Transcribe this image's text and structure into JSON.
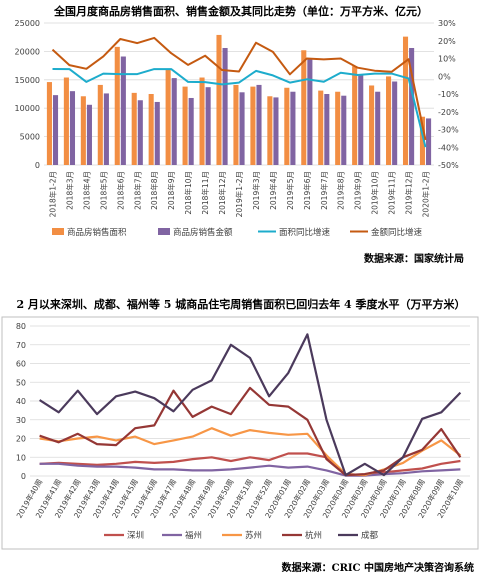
{
  "chart_data": [
    {
      "type": "bar+line",
      "title": "全国月度商品房销售面积、销售金额及其同比走势（单位：万平方米、亿元）",
      "source": "数据来源：国家统计局",
      "categories": [
        "2018年1-2月",
        "2018年3月",
        "2018年4月",
        "2018年5月",
        "2018年6月",
        "2018年7月",
        "2018年8月",
        "2018年9月",
        "2018年10月",
        "2018年11月",
        "2018年12月",
        "2019年1-2月",
        "2019年3月",
        "2019年4月",
        "2019年5月",
        "2019年6月",
        "2019年7月",
        "2019年8月",
        "2019年9月",
        "2019年10月",
        "2019年11月",
        "2019年12月",
        "2020年1-2月"
      ],
      "ylim": [
        0,
        25000
      ],
      "yticks": [
        0,
        5000,
        10000,
        15000,
        20000,
        25000
      ],
      "y2lim": [
        -50,
        30
      ],
      "y2ticks": [
        -50,
        -40,
        -30,
        -20,
        -10,
        0,
        10,
        20,
        30
      ],
      "bar_series": [
        {
          "name": "商品房销售面积",
          "color": "#f28e43",
          "values": [
            14600,
            15400,
            12100,
            14100,
            20800,
            12700,
            12500,
            16800,
            13800,
            15400,
            22900,
            14100,
            13800,
            12100,
            13600,
            20200,
            13100,
            12900,
            17400,
            14000,
            15600,
            22600,
            8500
          ]
        },
        {
          "name": "商品房销售金额",
          "color": "#8064a2",
          "values": [
            12300,
            13000,
            10600,
            12600,
            19100,
            11400,
            11100,
            15300,
            11800,
            13700,
            20600,
            12800,
            14100,
            11900,
            12900,
            18800,
            12500,
            12200,
            16000,
            12900,
            14700,
            20600,
            8200
          ]
        }
      ],
      "line_series": [
        {
          "name": "面积同比增速",
          "color": "#1daccc",
          "values": [
            4.1,
            4.0,
            -3.2,
            1.5,
            1.2,
            1.2,
            4.0,
            4.0,
            -3.2,
            -3.3,
            -4.6,
            -3.6,
            3.0,
            0.5,
            -3.6,
            -1.7,
            -3.1,
            2.0,
            0.7,
            1.5,
            1.5,
            -1.2,
            -39.9
          ]
        },
        {
          "name": "金额同比增速",
          "color": "#c55a11",
          "values": [
            15.0,
            6.3,
            4.2,
            11.2,
            21.0,
            18.7,
            21.6,
            13.0,
            6.4,
            11.6,
            3.5,
            2.7,
            18.9,
            13.7,
            1.1,
            10.0,
            9.5,
            10.0,
            4.8,
            3.1,
            2.5,
            9.6,
            -35.9
          ]
        }
      ]
    },
    {
      "type": "line",
      "title": "2 月以来深圳、成都、福州等 5 城商品住宅周销售面积已回归去年 4 季度水平（万平方米）",
      "source": "数据来源：CRIC 中国房地产决策咨询系统",
      "categories": [
        "2019年40周",
        "2019年41周",
        "2019年42周",
        "2019年43周",
        "2019年44周",
        "2019年45周",
        "2019年46周",
        "2019年47周",
        "2019年48周",
        "2019年49周",
        "2019年50周",
        "2019年51周",
        "2019年52周",
        "2020年01周",
        "2020年02周",
        "2020年03周",
        "2020年04周",
        "2020年05周",
        "2020年06周",
        "2020年07周",
        "2020年08周",
        "2020年09周",
        "2020年10周"
      ],
      "ylim": [
        0,
        80
      ],
      "yticks": [
        0,
        10,
        20,
        30,
        40,
        50,
        60,
        70,
        80
      ],
      "series": [
        {
          "name": "深圳",
          "color": "#c0504d",
          "values": [
            6.5,
            7.0,
            6.5,
            6.0,
            6.5,
            7.5,
            7.0,
            7.5,
            9.0,
            10.0,
            8.0,
            10.0,
            8.5,
            12.0,
            12.0,
            10.0,
            1.0,
            0.5,
            2.0,
            3.0,
            4.0,
            6.5,
            8.0
          ]
        },
        {
          "name": "福州",
          "color": "#8064a2",
          "values": [
            6.5,
            6.5,
            5.5,
            5.0,
            5.0,
            4.5,
            3.5,
            3.5,
            3.0,
            3.0,
            3.5,
            4.5,
            5.5,
            4.5,
            5.0,
            3.0,
            0.2,
            0.2,
            1.0,
            1.5,
            2.5,
            3.0,
            3.5
          ]
        },
        {
          "name": "苏州",
          "color": "#f79646",
          "values": [
            20.0,
            18.5,
            20.0,
            21.0,
            19.0,
            21.0,
            17.0,
            19.0,
            21.0,
            25.5,
            21.5,
            24.5,
            23.0,
            22.0,
            22.5,
            11.0,
            1.0,
            0.5,
            3.5,
            7.0,
            13.5,
            19.0,
            11.0
          ]
        },
        {
          "name": "杭州",
          "color": "#953735",
          "values": [
            21.5,
            18.0,
            22.5,
            17.0,
            16.5,
            25.5,
            27.0,
            45.5,
            31.5,
            37.0,
            33.0,
            47.0,
            38.0,
            37.0,
            30.0,
            9.0,
            0.5,
            1.0,
            3.0,
            10.0,
            14.0,
            25.0,
            10.0
          ]
        },
        {
          "name": "成都",
          "color": "#4b3a5c",
          "values": [
            40.5,
            34.0,
            45.5,
            33.0,
            42.5,
            45.0,
            41.5,
            34.5,
            46.0,
            51.0,
            70.0,
            63.0,
            42.5,
            55.0,
            75.5,
            30.0,
            0.5,
            6.5,
            0.5,
            10.0,
            30.5,
            34.0,
            44.5
          ]
        }
      ]
    }
  ]
}
